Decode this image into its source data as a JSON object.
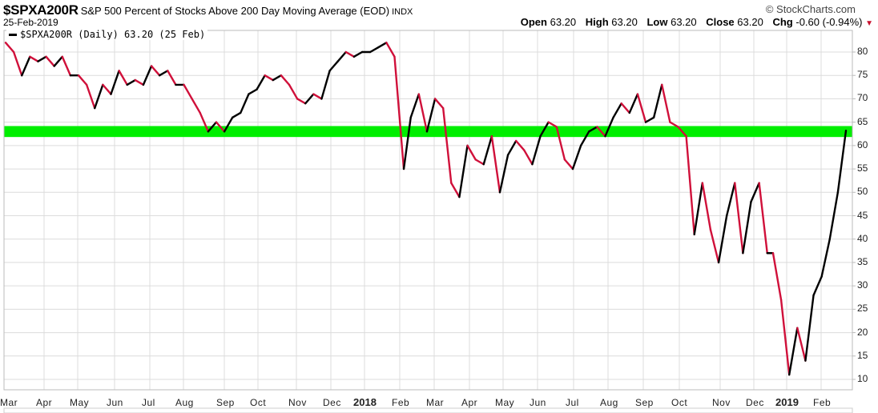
{
  "header": {
    "symbol": "$SPXA200R",
    "description": "S&P 500 Percent of Stocks Above 200 Day Moving Average (EOD)",
    "exchange": "INDX",
    "date": "25-Feb-2019",
    "brand": "© StockCharts.com",
    "ohlc": {
      "open_label": "Open",
      "open": "63.20",
      "high_label": "High",
      "high": "63.20",
      "low_label": "Low",
      "low": "63.20",
      "close_label": "Close",
      "close": "63.20",
      "chg_label": "Chg",
      "chg": "-0.60 (-0.94%)",
      "chg_direction_icon": "▼"
    }
  },
  "legend": {
    "label": "$SPXA200R (Daily) 63.20 (25 Feb)"
  },
  "colors": {
    "up_segment": "#000000",
    "down_segment": "#d0103a",
    "support_band": "#00ee00",
    "grid": "#dcdcdc",
    "axis": "#bbbbbb"
  },
  "chart_data": {
    "type": "line",
    "title": "$SPXA200R S&P 500 Percent of Stocks Above 200 Day Moving Average (EOD)",
    "series_name": "$SPXA200R (Daily)",
    "last_value": 63.2,
    "xlabel": "",
    "ylabel": "",
    "ylim": [
      7,
      84
    ],
    "y_ticks": [
      10,
      15,
      20,
      25,
      30,
      35,
      40,
      45,
      50,
      55,
      60,
      65,
      70,
      75,
      80
    ],
    "x_tick_labels": [
      "Mar",
      "Apr",
      "May",
      "Jun",
      "Jul",
      "Aug",
      "Sep",
      "Oct",
      "Nov",
      "Dec",
      "2018",
      "Feb",
      "Mar",
      "Apr",
      "May",
      "Jun",
      "Jul",
      "Aug",
      "Sep",
      "Oct",
      "Nov",
      "Dec",
      "2019",
      "Feb"
    ],
    "grid": true,
    "legend_position": "top-left",
    "annotations": [
      {
        "type": "horizontal_band",
        "from": 62,
        "to": 64,
        "color": "#00ee00"
      }
    ],
    "x": [
      "2017-03-01",
      "2017-03-08",
      "2017-03-15",
      "2017-03-22",
      "2017-03-29",
      "2017-04-05",
      "2017-04-12",
      "2017-04-19",
      "2017-04-26",
      "2017-05-03",
      "2017-05-10",
      "2017-05-17",
      "2017-05-24",
      "2017-05-31",
      "2017-06-07",
      "2017-06-14",
      "2017-06-21",
      "2017-06-28",
      "2017-07-05",
      "2017-07-12",
      "2017-07-19",
      "2017-07-26",
      "2017-08-02",
      "2017-08-09",
      "2017-08-16",
      "2017-08-23",
      "2017-08-30",
      "2017-09-06",
      "2017-09-13",
      "2017-09-20",
      "2017-09-27",
      "2017-10-04",
      "2017-10-11",
      "2017-10-18",
      "2017-10-25",
      "2017-11-01",
      "2017-11-08",
      "2017-11-15",
      "2017-11-22",
      "2017-11-29",
      "2017-12-06",
      "2017-12-13",
      "2017-12-20",
      "2017-12-27",
      "2018-01-03",
      "2018-01-10",
      "2018-01-17",
      "2018-01-24",
      "2018-01-31",
      "2018-02-05",
      "2018-02-08",
      "2018-02-14",
      "2018-02-21",
      "2018-02-28",
      "2018-03-07",
      "2018-03-14",
      "2018-03-21",
      "2018-03-28",
      "2018-04-04",
      "2018-04-11",
      "2018-04-18",
      "2018-04-25",
      "2018-05-02",
      "2018-05-09",
      "2018-05-16",
      "2018-05-23",
      "2018-05-30",
      "2018-06-06",
      "2018-06-13",
      "2018-06-20",
      "2018-06-27",
      "2018-07-04",
      "2018-07-11",
      "2018-07-18",
      "2018-07-25",
      "2018-08-01",
      "2018-08-08",
      "2018-08-15",
      "2018-08-22",
      "2018-08-29",
      "2018-09-05",
      "2018-09-12",
      "2018-09-19",
      "2018-09-26",
      "2018-10-03",
      "2018-10-10",
      "2018-10-17",
      "2018-10-24",
      "2018-10-31",
      "2018-11-07",
      "2018-11-14",
      "2018-11-21",
      "2018-11-28",
      "2018-12-05",
      "2018-12-12",
      "2018-12-19",
      "2018-12-24",
      "2018-12-31",
      "2019-01-07",
      "2019-01-14",
      "2019-01-21",
      "2019-01-28",
      "2019-02-04",
      "2019-02-11",
      "2019-02-18",
      "2019-02-25"
    ],
    "values": [
      82,
      80,
      75,
      79,
      78,
      79,
      77,
      79,
      75,
      75,
      73,
      68,
      73,
      71,
      76,
      73,
      74,
      73,
      77,
      75,
      76,
      73,
      73,
      70,
      67,
      63,
      65,
      63,
      66,
      67,
      71,
      72,
      75,
      74,
      75,
      73,
      70,
      69,
      71,
      70,
      76,
      78,
      80,
      79,
      80,
      80,
      81,
      82,
      79,
      64,
      55,
      66,
      71,
      63,
      70,
      68,
      52,
      49,
      60,
      57,
      56,
      62,
      50,
      58,
      61,
      59,
      56,
      62,
      65,
      64,
      57,
      55,
      60,
      63,
      64,
      62,
      66,
      69,
      67,
      71,
      65,
      66,
      73,
      65,
      64,
      62,
      41,
      52,
      42,
      35,
      45,
      52,
      37,
      48,
      52,
      37,
      37,
      27,
      11,
      21,
      14,
      28,
      32,
      40,
      50,
      63.2
    ]
  }
}
